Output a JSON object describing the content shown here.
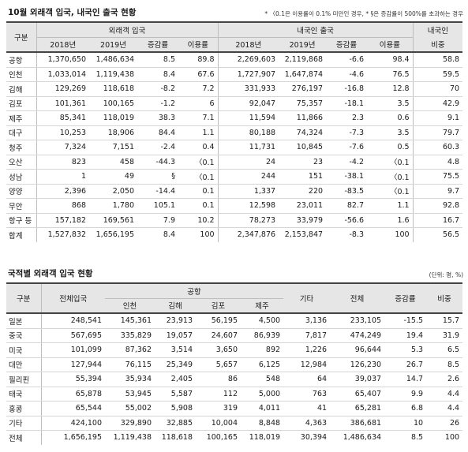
{
  "section1": {
    "title": "10월 외래객 입국, 내국인 출국 현황",
    "note": "* 〈0.1은 이용률이 0.1% 미만인 경우, * §은 증감률이 500%를 초과하는 경우",
    "h_gubun": "구분",
    "h_inbound": "외래객 입국",
    "h_outbound": "내국인 출국",
    "h_domestic": "내국인",
    "sub": [
      "2018년",
      "2019년",
      "증감률",
      "이용률",
      "2018년",
      "2019년",
      "증감률",
      "이용률",
      "비중"
    ],
    "rows": [
      [
        "공항",
        "1,370,650",
        "1,486,634",
        "8.5",
        "89.8",
        "2,269,603",
        "2,119,868",
        "-6.6",
        "98.4",
        "58.8"
      ],
      [
        "인천",
        "1,033,014",
        "1,119,438",
        "8.4",
        "67.6",
        "1,727,907",
        "1,647,874",
        "-4.6",
        "76.5",
        "59.5"
      ],
      [
        "김해",
        "129,269",
        "118,618",
        "-8.2",
        "7.2",
        "331,933",
        "276,197",
        "-16.8",
        "12.8",
        "70"
      ],
      [
        "김포",
        "101,361",
        "100,165",
        "-1.2",
        "6",
        "92,047",
        "75,357",
        "-18.1",
        "3.5",
        "42.9"
      ],
      [
        "제주",
        "85,341",
        "118,019",
        "38.3",
        "7.1",
        "11,594",
        "11,866",
        "2.3",
        "0.6",
        "9.1"
      ],
      [
        "대구",
        "10,253",
        "18,906",
        "84.4",
        "1.1",
        "80,188",
        "74,324",
        "-7.3",
        "3.5",
        "79.7"
      ],
      [
        "청주",
        "7,324",
        "7,151",
        "-2.4",
        "0.4",
        "11,731",
        "10,845",
        "-7.6",
        "0.5",
        "60.3"
      ],
      [
        "오산",
        "823",
        "458",
        "-44.3",
        "〈0.1",
        "24",
        "23",
        "-4.2",
        "〈0.1",
        "4.8"
      ],
      [
        "성남",
        "1",
        "49",
        "§",
        "〈0.1",
        "244",
        "151",
        "-38.1",
        "〈0.1",
        "75.5"
      ],
      [
        "양양",
        "2,396",
        "2,050",
        "-14.4",
        "0.1",
        "1,337",
        "220",
        "-83.5",
        "〈0.1",
        "9.7"
      ],
      [
        "무안",
        "868",
        "1,780",
        "105.1",
        "0.1",
        "12,598",
        "23,011",
        "82.7",
        "1.1",
        "92.8"
      ],
      [
        "항구 등",
        "157,182",
        "169,561",
        "7.9",
        "10.2",
        "78,273",
        "33,979",
        "-56.6",
        "1.6",
        "16.7"
      ],
      [
        "합계",
        "1,527,832",
        "1,656,195",
        "8.4",
        "100",
        "2,347,876",
        "2,153,847",
        "-8.3",
        "100",
        "56.5"
      ]
    ]
  },
  "section2": {
    "title": "국적별 외래객 입국 현황",
    "unit": "(단위: 명, %)",
    "h_gubun": "구분",
    "h_total_in": "전체입국",
    "h_airport": "공항",
    "airport_sub": [
      "인천",
      "김해",
      "김포",
      "제주"
    ],
    "h_etc": "기타",
    "h_all": "전체",
    "h_change": "증감률",
    "h_share": "비중",
    "rows": [
      [
        "일본",
        "248,541",
        "145,361",
        "23,913",
        "56,195",
        "4,500",
        "3,136",
        "233,105",
        "-15.5",
        "15.7"
      ],
      [
        "중국",
        "567,695",
        "335,829",
        "19,057",
        "24,607",
        "86,939",
        "7,817",
        "474,249",
        "19.4",
        "31.9"
      ],
      [
        "미국",
        "101,099",
        "87,362",
        "3,514",
        "3,650",
        "892",
        "1,226",
        "96,644",
        "5.3",
        "6.5"
      ],
      [
        "대만",
        "127,944",
        "76,115",
        "25,349",
        "5,657",
        "6,125",
        "12,984",
        "126,230",
        "26.7",
        "8.5"
      ],
      [
        "필리핀",
        "55,394",
        "35,934",
        "2,405",
        "86",
        "548",
        "64",
        "39,037",
        "14.7",
        "2.6"
      ],
      [
        "태국",
        "65,878",
        "53,945",
        "5,587",
        "112",
        "5,000",
        "763",
        "65,407",
        "9.9",
        "4.4"
      ],
      [
        "홍콩",
        "65,544",
        "55,002",
        "5,908",
        "319",
        "4,011",
        "41",
        "65,281",
        "6.8",
        "4.4"
      ],
      [
        "기타",
        "424,100",
        "329,890",
        "32,885",
        "10,004",
        "8,848",
        "4,363",
        "386,681",
        "10",
        "26"
      ],
      [
        "전체",
        "1,656,195",
        "1,119,438",
        "118,618",
        "100,165",
        "118,019",
        "30,394",
        "1,486,634",
        "8.5",
        "100"
      ]
    ]
  }
}
